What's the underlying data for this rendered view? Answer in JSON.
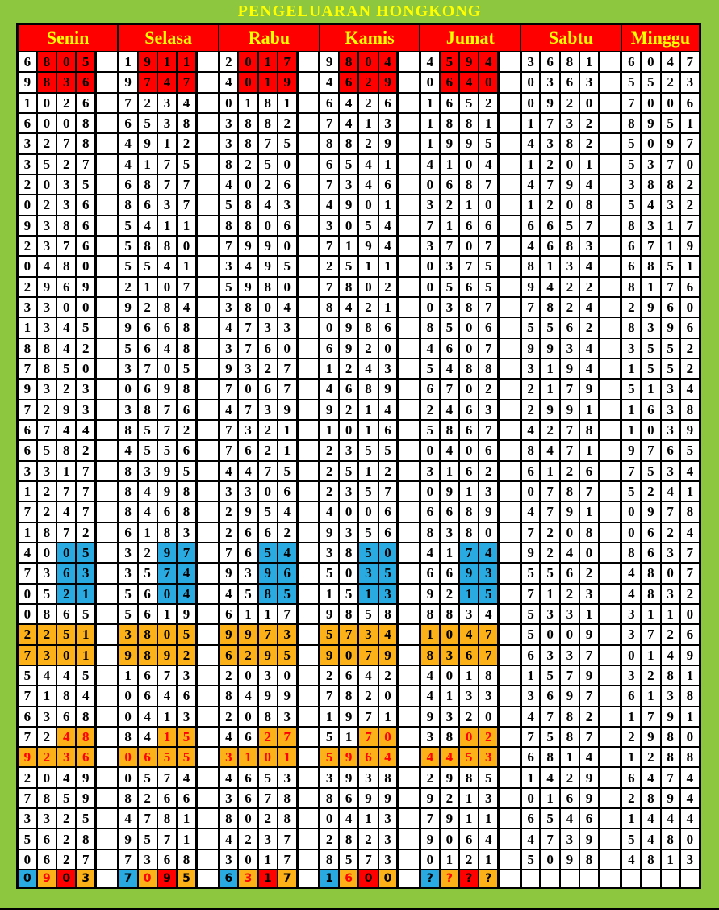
{
  "title": "PENGELUARAN HONGKONG",
  "days": [
    "Senin",
    "Selasa",
    "Rabu",
    "Kamis",
    "Jumat",
    "Sabtu",
    "Minggu"
  ],
  "colors": {
    "page_green": "#8DC63F",
    "header_red": "#FF0000",
    "header_text_yellow": "#FFFF00",
    "title_yellow": "#FFFF00",
    "highlight_red": "#FF0000",
    "highlight_blue": "#29ABE2",
    "highlight_orange": "#FBB117",
    "highlight_text_red": "#FF0000",
    "cell_white": "#FFFFFF",
    "border_black": "#000000"
  },
  "chart_data": {
    "type": "table",
    "title": "PENGELUARAN HONGKONG",
    "columns": [
      "Senin",
      "Selasa",
      "Rabu",
      "Kamis",
      "Jumat",
      "Sabtu",
      "Minggu"
    ],
    "rows": [
      [
        "6805",
        "1911",
        "2017",
        "9804",
        "4594",
        "3681",
        "6047"
      ],
      [
        "9836",
        "9747",
        "4019",
        "4629",
        "0640",
        "0363",
        "5523"
      ],
      [
        "1026",
        "7234",
        "0181",
        "6426",
        "1652",
        "0920",
        "7006"
      ],
      [
        "6008",
        "6538",
        "3882",
        "7413",
        "1881",
        "1732",
        "8951"
      ],
      [
        "3278",
        "4912",
        "3875",
        "8829",
        "1995",
        "4382",
        "5097"
      ],
      [
        "3527",
        "4175",
        "8250",
        "6541",
        "4104",
        "1201",
        "5370"
      ],
      [
        "2035",
        "6877",
        "4026",
        "7346",
        "0687",
        "4794",
        "3882"
      ],
      [
        "0236",
        "8637",
        "5843",
        "4901",
        "3210",
        "1208",
        "5432"
      ],
      [
        "9386",
        "5411",
        "8806",
        "3054",
        "7166",
        "6657",
        "8317"
      ],
      [
        "2376",
        "5880",
        "7990",
        "7194",
        "3707",
        "4683",
        "6719"
      ],
      [
        "0480",
        "5541",
        "3495",
        "2511",
        "0375",
        "8134",
        "6851"
      ],
      [
        "2969",
        "2107",
        "5980",
        "7802",
        "0565",
        "9422",
        "8176"
      ],
      [
        "3300",
        "9284",
        "3804",
        "8421",
        "0387",
        "7824",
        "2960"
      ],
      [
        "1345",
        "9668",
        "4733",
        "0986",
        "8506",
        "5562",
        "8396"
      ],
      [
        "8842",
        "5648",
        "3760",
        "6920",
        "4607",
        "9934",
        "3552"
      ],
      [
        "7850",
        "3705",
        "9327",
        "1243",
        "5488",
        "3194",
        "1552"
      ],
      [
        "9323",
        "0698",
        "7067",
        "4689",
        "6702",
        "2179",
        "5134"
      ],
      [
        "7293",
        "3876",
        "4739",
        "9214",
        "2463",
        "2991",
        "1638"
      ],
      [
        "6744",
        "8572",
        "7321",
        "1016",
        "5867",
        "4278",
        "1039"
      ],
      [
        "6582",
        "4556",
        "7621",
        "2355",
        "0406",
        "8471",
        "9765"
      ],
      [
        "3317",
        "8395",
        "4475",
        "2512",
        "3162",
        "6126",
        "7534"
      ],
      [
        "1277",
        "8498",
        "3306",
        "2357",
        "0913",
        "0787",
        "5241"
      ],
      [
        "7247",
        "8468",
        "2954",
        "4006",
        "6689",
        "4791",
        "0978"
      ],
      [
        "1872",
        "6183",
        "2662",
        "9356",
        "8380",
        "7208",
        "0624"
      ],
      [
        "4005",
        "3297",
        "7654",
        "3850",
        "4174",
        "9240",
        "8637"
      ],
      [
        "7363",
        "3574",
        "9396",
        "5035",
        "6693",
        "5562",
        "4807"
      ],
      [
        "0521",
        "5604",
        "4585",
        "1513",
        "9215",
        "7123",
        "4832"
      ],
      [
        "0865",
        "5619",
        "6117",
        "9858",
        "8834",
        "5331",
        "3110"
      ],
      [
        "2251",
        "3805",
        "9973",
        "5734",
        "1047",
        "5009",
        "3726"
      ],
      [
        "7301",
        "9892",
        "6295",
        "9079",
        "8367",
        "6337",
        "0149"
      ],
      [
        "5445",
        "1673",
        "2030",
        "2642",
        "4018",
        "1579",
        "3281"
      ],
      [
        "7184",
        "0646",
        "8499",
        "7820",
        "4133",
        "3697",
        "6138"
      ],
      [
        "6368",
        "0413",
        "2083",
        "1971",
        "9320",
        "4782",
        "1791"
      ],
      [
        "7248",
        "8415",
        "4627",
        "5170",
        "3802",
        "7587",
        "2980"
      ],
      [
        "9236",
        "0655",
        "3101",
        "5964",
        "4453",
        "6814",
        "1288"
      ],
      [
        "2049",
        "0574",
        "4653",
        "3938",
        "2985",
        "1429",
        "6474"
      ],
      [
        "7859",
        "8266",
        "3678",
        "8699",
        "9213",
        "0169",
        "2894"
      ],
      [
        "3325",
        "4781",
        "8028",
        "0413",
        "7911",
        "6546",
        "1444"
      ],
      [
        "5628",
        "9571",
        "4237",
        "2823",
        "9064",
        "4739",
        "5480"
      ],
      [
        "0627",
        "7368",
        "3017",
        "8573",
        "0121",
        "5098",
        "4813"
      ],
      [
        "0903",
        "7095",
        "6317",
        "1600",
        "????",
        "",
        ""
      ]
    ],
    "highlights": [
      {
        "rows": [
          0,
          1
        ],
        "groups": [
          0,
          1,
          2,
          3,
          4
        ],
        "digits": [
          1,
          2,
          3
        ],
        "bg": "red",
        "fg": "black"
      },
      {
        "rows": [
          24,
          25,
          26
        ],
        "groups": [
          0,
          1,
          2,
          3,
          4
        ],
        "digits": [
          2,
          3
        ],
        "bg": "blue",
        "fg": "black"
      },
      {
        "rows": [
          28,
          29
        ],
        "groups": [
          0,
          1,
          2,
          3,
          4
        ],
        "digits": [
          0,
          1,
          2,
          3
        ],
        "bg": "orange",
        "fg": "black"
      },
      {
        "rows": [
          33
        ],
        "groups": [
          0,
          1,
          2,
          3,
          4
        ],
        "digits": [
          2,
          3
        ],
        "bg": "orange",
        "fg": "red"
      },
      {
        "rows": [
          34
        ],
        "groups": [
          0,
          1,
          2,
          3,
          4
        ],
        "digits": [
          0,
          1,
          2,
          3
        ],
        "bg": "orange",
        "fg": "red"
      }
    ],
    "prediction_row": {
      "index": 40,
      "digit_bgs": [
        "blue",
        "orange",
        "red",
        "orange"
      ],
      "digit_fgs": [
        "black",
        "red",
        "black",
        "black"
      ],
      "unknown_value": "????"
    }
  }
}
